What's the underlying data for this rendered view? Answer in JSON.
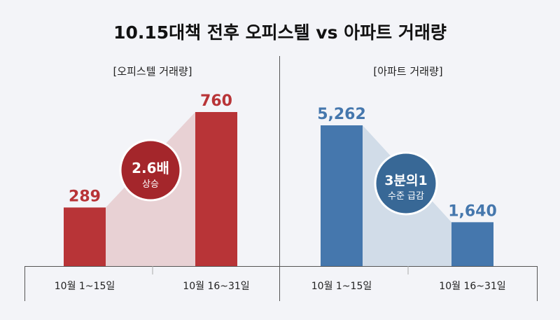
{
  "title": "10.15대책 전후 오피스텔 vs 아파트 거래량",
  "colors": {
    "background": "#f3f4f8",
    "officetel_bar": "#b83437",
    "officetel_fill": "#e8d1d4",
    "officetel_badge": "#a4262b",
    "apartment_bar": "#4577ad",
    "apartment_fill": "#d1dce8",
    "apartment_badge": "#386896"
  },
  "chart_data": [
    {
      "type": "bar",
      "title": "[오피스텔 거래량]",
      "categories": [
        "10월 1~15일",
        "10월 16~31일"
      ],
      "values": [
        289,
        760
      ],
      "data_labels": [
        "289",
        "760"
      ],
      "annotation": {
        "line1": "2.6배",
        "line2": "상승"
      },
      "grid": false
    },
    {
      "type": "bar",
      "title": "[아파트 거래량]",
      "categories": [
        "10월 1~15일",
        "10월 16~31일"
      ],
      "values": [
        5262,
        1640
      ],
      "data_labels": [
        "5,262",
        "1,640"
      ],
      "annotation": {
        "line1": "3분의1",
        "line2": "수준 급감"
      },
      "grid": false
    }
  ]
}
